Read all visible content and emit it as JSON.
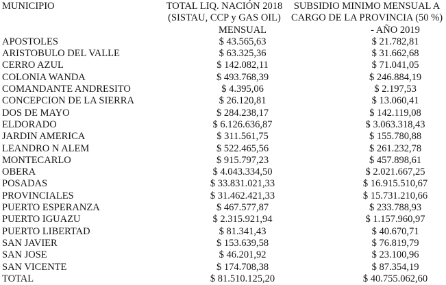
{
  "page": {
    "background_color": "#ffffff",
    "text_color": "#151515"
  },
  "table": {
    "header": {
      "col1": "MUNICIPIO",
      "col2_lines": [
        "TOTAL LIQ. NACIÓN 2018",
        "(SISTAU, CCP y GAS OIL)",
        "MENSUAL"
      ],
      "col3_lines": [
        "SUBSIDIO MINIMO MENSUAL A",
        "CARGO DE LA PROVINCIA (50 %)",
        "- AÑO 2019"
      ]
    },
    "rows": [
      {
        "municipio": "APOSTOLES",
        "total": "$ 43.565,63",
        "subsidio": "$ 21.782,81"
      },
      {
        "municipio": "ARISTOBULO DEL VALLE",
        "total": "$ 63.325,36",
        "subsidio": "$ 31.662,68"
      },
      {
        "municipio": "CERRO AZUL",
        "total": "$ 142.082,11",
        "subsidio": "$ 71.041,05"
      },
      {
        "municipio": "COLONIA WANDA",
        "total": "$ 493.768,39",
        "subsidio": "$ 246.884,19"
      },
      {
        "municipio": "COMANDANTE ANDRESITO",
        "total": "$ 4.395,06",
        "subsidio": "$ 2.197,53"
      },
      {
        "municipio": "CONCEPCION DE LA SIERRA",
        "total": "$ 26.120,81",
        "subsidio": "$ 13.060,41"
      },
      {
        "municipio": "DOS DE MAYO",
        "total": "$ 284.238,17",
        "subsidio": "$ 142.119,08"
      },
      {
        "municipio": "ELDORADO",
        "total": "$ 6.126.636,87",
        "subsidio": "$ 3.063.318,43"
      },
      {
        "municipio": "JARDIN AMERICA",
        "total": "$ 311.561,75",
        "subsidio": "$ 155.780,88"
      },
      {
        "municipio": "LEANDRO N ALEM",
        "total": "$ 522.465,56",
        "subsidio": "$ 261.232,78"
      },
      {
        "municipio": "MONTECARLO",
        "total": "$ 915.797,23",
        "subsidio": "$ 457.898,61"
      },
      {
        "municipio": "OBERA",
        "total": "$ 4.043.334,50",
        "subsidio": "$ 2.021.667,25"
      },
      {
        "municipio": "POSADAS",
        "total": "$ 33.831.021,33",
        "subsidio": "$ 16.915.510,67"
      },
      {
        "municipio": "PROVINCIALES",
        "total": "$ 31.462.421,33",
        "subsidio": "$ 15.731.210,66"
      },
      {
        "municipio": "PUERTO ESPERANZA",
        "total": "$ 467.577,87",
        "subsidio": "$ 233.788,93"
      },
      {
        "municipio": "PUERTO IGUAZU",
        "total": "$ 2.315.921,94",
        "subsidio": "$ 1.157.960,97"
      },
      {
        "municipio": "PUERTO LIBERTAD",
        "total": "$ 81.341,43",
        "subsidio": "$ 40.670,71"
      },
      {
        "municipio": "SAN JAVIER",
        "total": "$ 153.639,58",
        "subsidio": "$ 76.819,79"
      },
      {
        "municipio": "SAN JOSE",
        "total": "$ 46.201,92",
        "subsidio": "$ 23.100,96"
      },
      {
        "municipio": "SAN VICENTE",
        "total": "$ 174.708,38",
        "subsidio": "$ 87.354,19"
      },
      {
        "municipio": "TOTAL",
        "total": "$ 81.510.125,20",
        "subsidio": "$ 40.755.062,60"
      }
    ]
  }
}
